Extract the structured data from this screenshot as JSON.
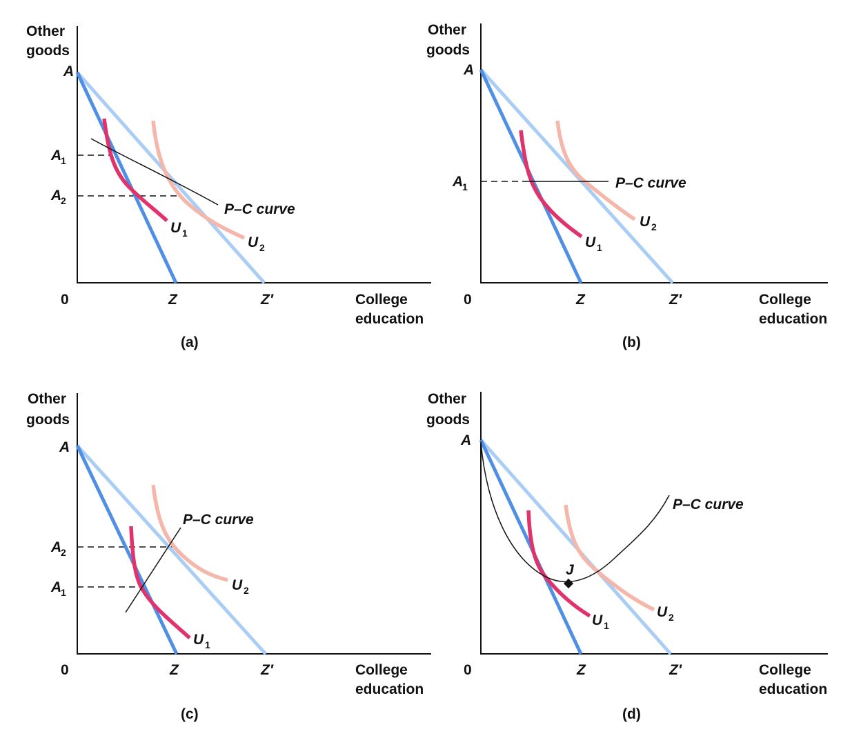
{
  "panels": [
    {
      "id": "a",
      "caption": "(a)",
      "y_axis_label": [
        "Other",
        "goods"
      ],
      "x_axis_label": [
        "College",
        "education"
      ],
      "origin": "0",
      "A": "A",
      "levels": [
        "A",
        "1",
        "A",
        "2"
      ],
      "Z": "Z",
      "Zp": "Z′",
      "pc_label": "P–C curve",
      "u1": [
        "U",
        "1"
      ],
      "u2": [
        "U",
        "2"
      ]
    },
    {
      "id": "b",
      "caption": "(b)",
      "y_axis_label": [
        "Other",
        "goods"
      ],
      "x_axis_label": [
        "College",
        "education"
      ],
      "origin": "0",
      "A": "A",
      "levels": [
        "A",
        "1"
      ],
      "Z": "Z",
      "Zp": "Z′",
      "pc_label": "P–C curve",
      "u1": [
        "U",
        "1"
      ],
      "u2": [
        "U",
        "2"
      ]
    },
    {
      "id": "c",
      "caption": "(c)",
      "y_axis_label": [
        "Other",
        "goods"
      ],
      "x_axis_label": [
        "College",
        "education"
      ],
      "origin": "0",
      "A": "A",
      "levels": [
        "A",
        "2",
        "A",
        "1"
      ],
      "Z": "Z",
      "Zp": "Z′",
      "pc_label": "P–C curve",
      "u1": [
        "U",
        "1"
      ],
      "u2": [
        "U",
        "2"
      ]
    },
    {
      "id": "d",
      "caption": "(d)",
      "y_axis_label": [
        "Other",
        "goods"
      ],
      "x_axis_label": [
        "College",
        "education"
      ],
      "origin": "0",
      "A": "A",
      "Z": "Z",
      "Zp": "Z′",
      "pc_label": "P–C curve",
      "point": "J",
      "u1": [
        "U",
        "1"
      ],
      "u2": [
        "U",
        "2"
      ]
    }
  ],
  "colors": {
    "budget_Z": "#4f8fe6",
    "budget_Zprime": "#a9cdf4",
    "u1": "#e0336c",
    "u2": "#f4b7aa",
    "ink": "#111111"
  }
}
